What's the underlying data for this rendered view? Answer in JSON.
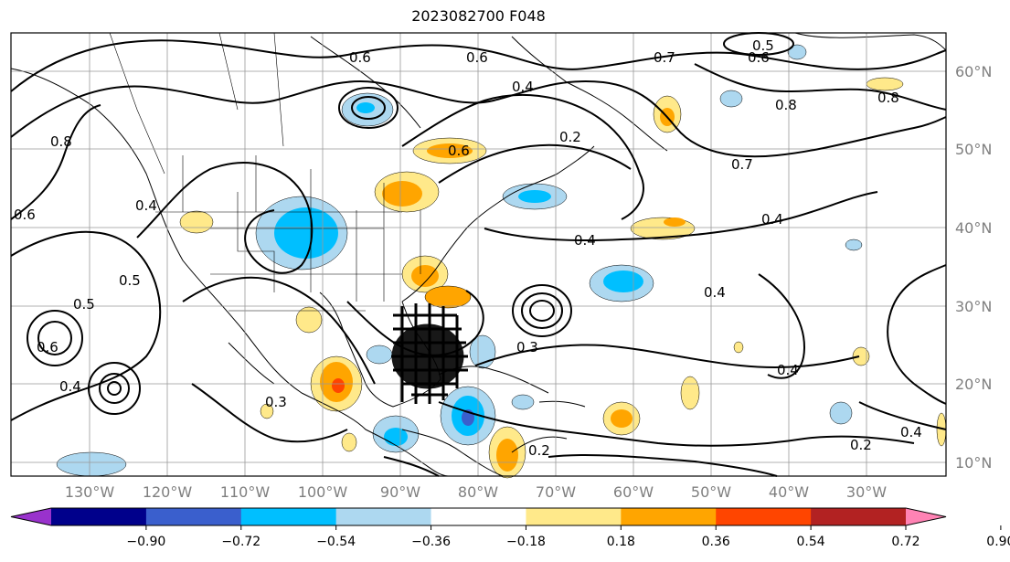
{
  "title": "2023082700 F048",
  "lat_labels": [
    "60°N",
    "50°N",
    "40°N",
    "30°N",
    "20°N",
    "10°N"
  ],
  "lon_labels": [
    "130°W",
    "120°W",
    "110°W",
    "100°W",
    "90°W",
    "80°W",
    "70°W",
    "60°W",
    "50°W",
    "40°W",
    "30°W"
  ],
  "colorbar": {
    "tick_labels": [
      "−0.90",
      "−0.72",
      "−0.54",
      "−0.36",
      "−0.18",
      "0.18",
      "0.36",
      "0.54",
      "0.72",
      "0.90"
    ],
    "colors": [
      "#9932cc",
      "#00008b",
      "#3a5fcd",
      "#00bfff",
      "#add8f0",
      "#ffffff",
      "#ffe98a",
      "#ffa500",
      "#ff4500",
      "#b22222",
      "#ff83b4"
    ]
  },
  "contour_labels": [
    "0.6",
    "0.6",
    "0.7",
    "0.6",
    "0.5",
    "0.4",
    "0.6",
    "0.2",
    "0.8",
    "0.8",
    "0.7",
    "0.4",
    "0.4",
    "0.4",
    "0.3",
    "0.5",
    "0.5",
    "0.6",
    "0.8",
    "0.4",
    "0.4",
    "0.6",
    "0.3",
    "0.2",
    "0.4",
    "0.2",
    "0.4"
  ]
}
